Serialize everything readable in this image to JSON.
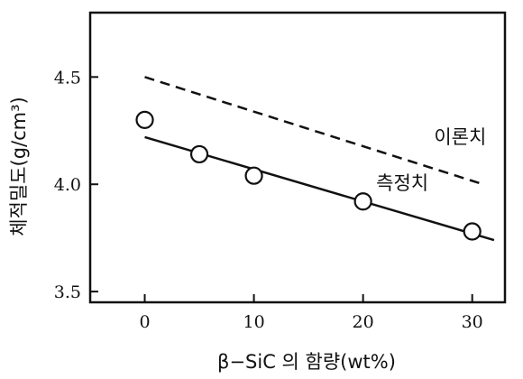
{
  "chart_data": {
    "type": "scatter",
    "title": "",
    "xlabel": "β−SiC 의 함량(wt%)",
    "ylabel": "체적밀도(g/cm³)",
    "xlim": [
      -5,
      33
    ],
    "ylim": [
      3.45,
      4.8
    ],
    "xticks": [
      0,
      10,
      20,
      30
    ],
    "yticks": [
      3.5,
      4.0,
      4.5
    ],
    "grid": false,
    "series": [
      {
        "name": "측정치",
        "style": "points-with-solid-fit-line",
        "x": [
          0,
          5,
          10,
          20,
          30
        ],
        "y": [
          4.3,
          4.14,
          4.04,
          3.92,
          3.78
        ],
        "fit_line": {
          "x": [
            0,
            32
          ],
          "y": [
            4.22,
            3.74
          ]
        }
      },
      {
        "name": "이론치",
        "style": "dashed-line",
        "x": [
          0,
          31
        ],
        "y": [
          4.5,
          4.0
        ]
      }
    ]
  }
}
